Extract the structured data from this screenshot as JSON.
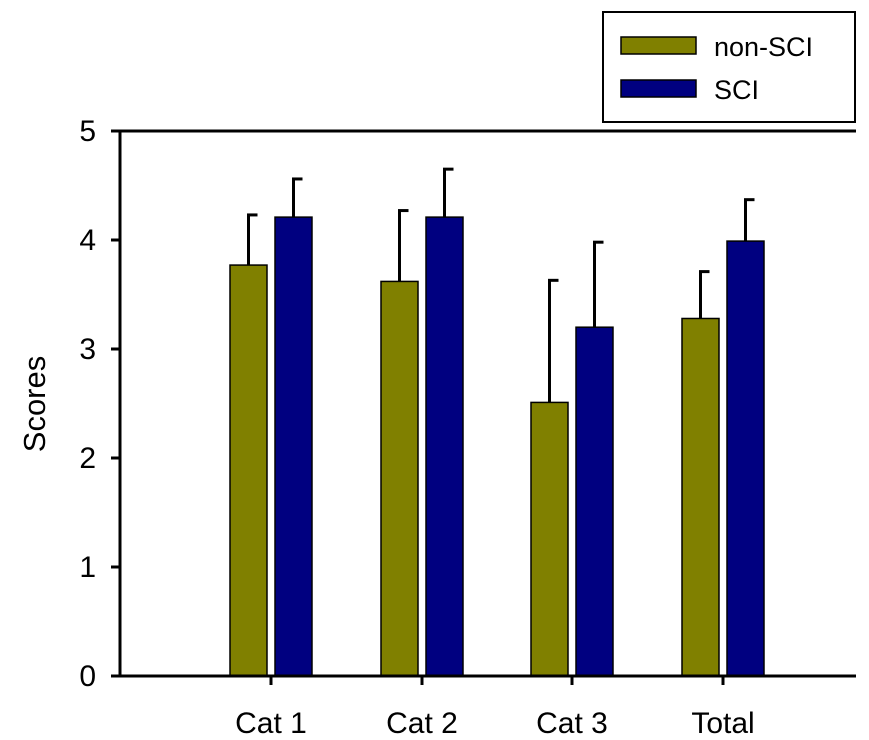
{
  "chart_data": {
    "type": "bar",
    "title": "",
    "xlabel": "",
    "ylabel": "Scores",
    "ylim": [
      0,
      5
    ],
    "yticks": [
      "0",
      "1",
      "2",
      "3",
      "4",
      "5"
    ],
    "categories": [
      "Cat 1",
      "Cat 2",
      "Cat 3",
      "Total"
    ],
    "series": [
      {
        "name": "non-SCI",
        "color": "#808000",
        "values": [
          3.77,
          3.62,
          2.51,
          3.28
        ],
        "error_plus": [
          0.46,
          0.65,
          1.12,
          0.43
        ]
      },
      {
        "name": "SCI",
        "color": "#000080",
        "values": [
          4.21,
          4.21,
          3.2,
          3.99
        ],
        "error_plus": [
          0.35,
          0.44,
          0.78,
          0.38
        ]
      }
    ],
    "error_bars": "upper only",
    "legend_position": "top-right",
    "grid": false
  }
}
